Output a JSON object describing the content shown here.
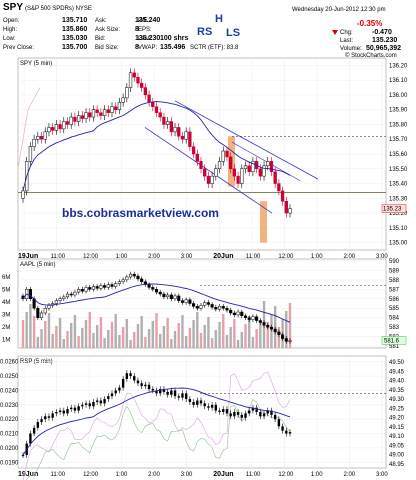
{
  "header": {
    "symbol": "SPY",
    "symbol_desc": "(S&P 500 SPDRs) NYSE",
    "date_time": "Wednesday  20-Jun-2012  12:30 pm",
    "logo": "© StockCharts.com",
    "chg_pct": "-0.35%",
    "left_rows": [
      {
        "label": "Open:",
        "value": "135.710"
      },
      {
        "label": "High:",
        "value": "135.860"
      },
      {
        "label": "Low:",
        "value": "135.030"
      },
      {
        "label": "Prev Close:",
        "value": "135.700"
      }
    ],
    "mid_rows": [
      {
        "label": "Ask:",
        "value": "135.240"
      },
      {
        "label": "Ask Size:",
        "value": "8"
      },
      {
        "label": "Bid:",
        "value": "135.230"
      },
      {
        "label": "Bid Size:",
        "value": "8"
      }
    ],
    "col3_rows": [
      {
        "label": "P/E:",
        "value": ""
      },
      {
        "label": "EPS:",
        "value": ""
      },
      {
        "label": "Last:",
        "value": "100 shrs"
      },
      {
        "label": "VWAP:",
        "value": "135.496"
      }
    ],
    "sctr": "SCTR (ETF): 83.8",
    "right_rows": [
      {
        "label": "Chg:",
        "value": "-0.470"
      },
      {
        "label": "Last:",
        "value": "135.230"
      },
      {
        "label": "Volume:",
        "value": "50,965,392"
      }
    ]
  },
  "colors": {
    "up": "#000000",
    "down": "#cc0033",
    "ma": "#2222aa",
    "trend": "#3333cc",
    "green": "#228822",
    "orange": "#f0a060",
    "pink": "#e8b0b8",
    "vol": "#b0b0b0",
    "red_text": "#dd0000"
  },
  "chart_data": [
    {
      "type": "candlestick",
      "title": "SPY (5 min)",
      "ylim": [
        134.95,
        136.25
      ],
      "y_ticks": [
        "136.20",
        "136.10",
        "136.00",
        "135.90",
        "135.80",
        "135.70",
        "135.60",
        "135.50",
        "135.40",
        "135.30",
        "135.20",
        "135.10",
        "135.00"
      ],
      "x_ticks": [
        "19Jun",
        "11:00",
        "12:00",
        "1:00",
        "2:00",
        "3:00",
        "20Jun",
        "11:00",
        "12:00",
        "1:00",
        "2:00",
        "3:00"
      ],
      "close": [
        135.35,
        135.55,
        135.65,
        135.7,
        135.72,
        135.7,
        135.75,
        135.78,
        135.76,
        135.8,
        135.77,
        135.82,
        135.8,
        135.85,
        135.82,
        135.86,
        135.84,
        135.88,
        135.85,
        135.9,
        135.88,
        135.86,
        135.9,
        135.88,
        135.92,
        135.9,
        135.95,
        135.98,
        136.05,
        136.15,
        136.12,
        136.08,
        136.05,
        136.0,
        135.95,
        135.92,
        135.88,
        135.85,
        135.8,
        135.82,
        135.75,
        135.78,
        135.72,
        135.7,
        135.75,
        135.65,
        135.6,
        135.55,
        135.5,
        135.45,
        135.4,
        135.45,
        135.5,
        135.55,
        135.62,
        135.58,
        135.5,
        135.45,
        135.4,
        135.5,
        135.52,
        135.48,
        135.55,
        135.5,
        135.45,
        135.52,
        135.55,
        135.48,
        135.4,
        135.35,
        135.28,
        135.2,
        135.23
      ],
      "annotations": [
        "RS",
        "H",
        "LS",
        "bbs.cobrasmarketview.com"
      ],
      "last_value": "135.23"
    },
    {
      "type": "bar+line",
      "title": "AAPL (5 min)",
      "y_ticks": [
        "590",
        "589",
        "588",
        "587",
        "586",
        "585",
        "584",
        "583",
        "582",
        "581"
      ],
      "vol_ticks": [
        "6M",
        "5M",
        "4M",
        "3M",
        "2M",
        "1M"
      ],
      "ylim": [
        580.8,
        590.2
      ],
      "close": [
        586,
        587,
        586,
        585,
        584,
        584.5,
        585,
        585.3,
        585.5,
        585.8,
        586,
        586.2,
        586.5,
        586.4,
        586.7,
        587,
        586.8,
        587.2,
        587,
        587.3,
        587.1,
        587.4,
        587.2,
        587.5,
        587.3,
        587.6,
        587.8,
        588,
        588.3,
        588.6,
        588.4,
        588.1,
        587.8,
        587.5,
        587.2,
        587,
        586.7,
        586.5,
        586.2,
        586.4,
        586,
        586.3,
        585.8,
        585.6,
        585.9,
        585.5,
        585.2,
        585,
        585.3,
        585.6,
        585.4,
        585.1,
        584.9,
        585.2,
        585,
        584.8,
        584.5,
        584.3,
        584.6,
        584.2,
        584,
        583.8,
        584.1,
        583.7,
        583.5,
        583.2,
        583,
        582.8,
        582.5,
        582.2,
        581.8,
        581.5,
        581.6
      ],
      "last_value": "581.6"
    },
    {
      "type": "line",
      "title": "RSP (5 min)",
      "y_ticks": [
        "0.0260",
        "0.0250",
        "0.0240",
        "0.0230",
        "0.0220",
        "0.0210",
        "0.0200",
        "0.0190"
      ],
      "y2_ticks": [
        "49.50",
        "49.45",
        "49.40",
        "49.35",
        "49.30",
        "49.25",
        "49.20",
        "49.15",
        "49.10",
        "49.05",
        "49.00",
        "48.95"
      ],
      "ylim": [
        0.0186,
        0.0264
      ],
      "close": [
        0.0195,
        0.0203,
        0.021,
        0.0214,
        0.0218,
        0.022,
        0.0222,
        0.0221,
        0.0224,
        0.0225,
        0.0226,
        0.0224,
        0.0227,
        0.0228,
        0.0226,
        0.0229,
        0.023,
        0.0231,
        0.0229,
        0.0232,
        0.0233,
        0.0231,
        0.0234,
        0.0236,
        0.0238,
        0.024,
        0.0242,
        0.0248,
        0.0252,
        0.025,
        0.0247,
        0.0245,
        0.0243,
        0.0244,
        0.0241,
        0.024,
        0.0238,
        0.0241,
        0.0239,
        0.0237,
        0.024,
        0.0236,
        0.0235,
        0.0238,
        0.0234,
        0.0232,
        0.023,
        0.0233,
        0.0231,
        0.0229,
        0.0228,
        0.023,
        0.0226,
        0.0225,
        0.0227,
        0.0224,
        0.0222,
        0.0225,
        0.0223,
        0.0221,
        0.0224,
        0.0226,
        0.0228,
        0.0225,
        0.0222,
        0.0224,
        0.0226,
        0.0223,
        0.022,
        0.0215,
        0.0212,
        0.021,
        0.0211
      ],
      "last_value": "0.0211"
    }
  ]
}
